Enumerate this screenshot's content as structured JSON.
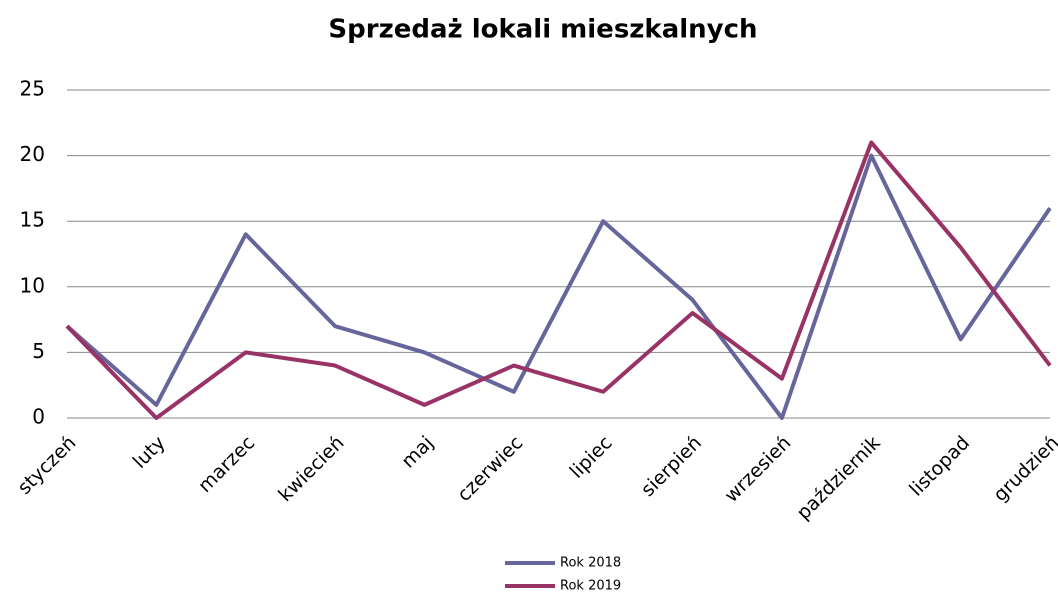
{
  "chart_data": {
    "type": "line",
    "title": "Sprzedaż lokali mieszkalnych",
    "categories": [
      "styczeń",
      "luty",
      "marzec",
      "kwiecień",
      "maj",
      "czerwiec",
      "lipiec",
      "sierpień",
      "wrzesień",
      "październik",
      "listopad",
      "grudzień"
    ],
    "series": [
      {
        "name": "Rok 2018",
        "color": "#66669c",
        "values": [
          7,
          1,
          14,
          7,
          5,
          2,
          15,
          9,
          0,
          20,
          6,
          16
        ]
      },
      {
        "name": "Rok 2019",
        "color": "#993366",
        "values": [
          7,
          0,
          5,
          4,
          1,
          4,
          2,
          8,
          3,
          21,
          13,
          4
        ]
      }
    ],
    "ylim": [
      0,
      25
    ],
    "yticks": [
      0,
      5,
      10,
      15,
      20,
      25
    ],
    "grid": true,
    "legend": "bottom"
  }
}
